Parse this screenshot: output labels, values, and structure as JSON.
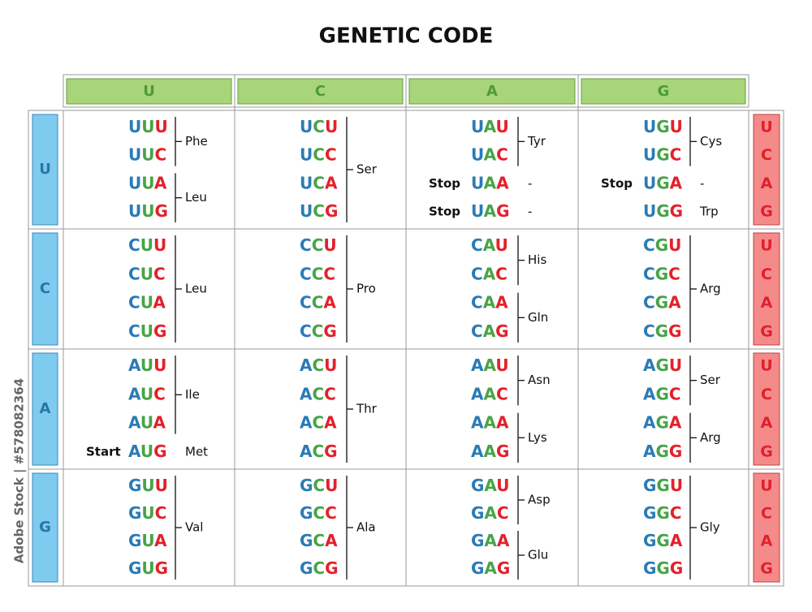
{
  "header": {
    "title": "GENETIC CODE"
  },
  "watermark": "Adobe Stock | #578082364",
  "columns": [
    "U",
    "C",
    "A",
    "G"
  ],
  "rows": [
    {
      "label": "U",
      "third_base": [
        "U",
        "C",
        "A",
        "G"
      ],
      "cells": [
        {
          "groups": [
            {
              "amino_acid": "Phe",
              "codons": [
                {
                  "codon": "UUU"
                },
                {
                  "codon": "UUC"
                }
              ]
            },
            {
              "amino_acid": "Leu",
              "codons": [
                {
                  "codon": "UUA"
                },
                {
                  "codon": "UUG"
                }
              ]
            }
          ]
        },
        {
          "groups": [
            {
              "amino_acid": "Ser",
              "codons": [
                {
                  "codon": "UCU"
                },
                {
                  "codon": "UCC"
                },
                {
                  "codon": "UCA"
                },
                {
                  "codon": "UCG"
                }
              ]
            }
          ]
        },
        {
          "groups": [
            {
              "amino_acid": "Tyr",
              "codons": [
                {
                  "codon": "UAU"
                },
                {
                  "codon": "UAC"
                }
              ]
            },
            {
              "amino_acid": "-",
              "codons": [
                {
                  "codon": "UAA",
                  "note": "Stop"
                }
              ]
            },
            {
              "amino_acid": "-",
              "codons": [
                {
                  "codon": "UAG",
                  "note": "Stop"
                }
              ]
            }
          ]
        },
        {
          "groups": [
            {
              "amino_acid": "Cys",
              "codons": [
                {
                  "codon": "UGU"
                },
                {
                  "codon": "UGC"
                }
              ]
            },
            {
              "amino_acid": "-",
              "codons": [
                {
                  "codon": "UGA",
                  "note": "Stop"
                }
              ]
            },
            {
              "amino_acid": "Trp",
              "codons": [
                {
                  "codon": "UGG"
                }
              ]
            }
          ]
        }
      ]
    },
    {
      "label": "C",
      "third_base": [
        "U",
        "C",
        "A",
        "G"
      ],
      "cells": [
        {
          "groups": [
            {
              "amino_acid": "Leu",
              "codons": [
                {
                  "codon": "CUU"
                },
                {
                  "codon": "CUC"
                },
                {
                  "codon": "CUA"
                },
                {
                  "codon": "CUG"
                }
              ]
            }
          ]
        },
        {
          "groups": [
            {
              "amino_acid": "Pro",
              "codons": [
                {
                  "codon": "CCU"
                },
                {
                  "codon": "CCC"
                },
                {
                  "codon": "CCA"
                },
                {
                  "codon": "CCG"
                }
              ]
            }
          ]
        },
        {
          "groups": [
            {
              "amino_acid": "His",
              "codons": [
                {
                  "codon": "CAU"
                },
                {
                  "codon": "CAC"
                }
              ]
            },
            {
              "amino_acid": "Gln",
              "codons": [
                {
                  "codon": "CAA"
                },
                {
                  "codon": "CAG"
                }
              ]
            }
          ]
        },
        {
          "groups": [
            {
              "amino_acid": "Arg",
              "codons": [
                {
                  "codon": "CGU"
                },
                {
                  "codon": "CGC"
                },
                {
                  "codon": "CGA"
                },
                {
                  "codon": "CGG"
                }
              ]
            }
          ]
        }
      ]
    },
    {
      "label": "A",
      "third_base": [
        "U",
        "C",
        "A",
        "G"
      ],
      "cells": [
        {
          "groups": [
            {
              "amino_acid": "Ile",
              "codons": [
                {
                  "codon": "AUU"
                },
                {
                  "codon": "AUC"
                },
                {
                  "codon": "AUA"
                }
              ]
            },
            {
              "amino_acid": "Met",
              "codons": [
                {
                  "codon": "AUG",
                  "note": "Start"
                }
              ]
            }
          ]
        },
        {
          "groups": [
            {
              "amino_acid": "Thr",
              "codons": [
                {
                  "codon": "ACU"
                },
                {
                  "codon": "ACC"
                },
                {
                  "codon": "ACA"
                },
                {
                  "codon": "ACG"
                }
              ]
            }
          ]
        },
        {
          "groups": [
            {
              "amino_acid": "Asn",
              "codons": [
                {
                  "codon": "AAU"
                },
                {
                  "codon": "AAC"
                }
              ]
            },
            {
              "amino_acid": "Lys",
              "codons": [
                {
                  "codon": "AAA"
                },
                {
                  "codon": "AAG"
                }
              ]
            }
          ]
        },
        {
          "groups": [
            {
              "amino_acid": "Ser",
              "codons": [
                {
                  "codon": "AGU"
                },
                {
                  "codon": "AGC"
                }
              ]
            },
            {
              "amino_acid": "Arg",
              "codons": [
                {
                  "codon": "AGA"
                },
                {
                  "codon": "AGG"
                }
              ]
            }
          ]
        }
      ]
    },
    {
      "label": "G",
      "third_base": [
        "U",
        "C",
        "A",
        "G"
      ],
      "cells": [
        {
          "groups": [
            {
              "amino_acid": "Val",
              "codons": [
                {
                  "codon": "GUU"
                },
                {
                  "codon": "GUC"
                },
                {
                  "codon": "GUA"
                },
                {
                  "codon": "GUG"
                }
              ]
            }
          ]
        },
        {
          "groups": [
            {
              "amino_acid": "Ala",
              "codons": [
                {
                  "codon": "GCU"
                },
                {
                  "codon": "GCC"
                },
                {
                  "codon": "GCA"
                },
                {
                  "codon": "GCG"
                }
              ]
            }
          ]
        },
        {
          "groups": [
            {
              "amino_acid": "Asp",
              "codons": [
                {
                  "codon": "GAU"
                },
                {
                  "codon": "GAC"
                }
              ]
            },
            {
              "amino_acid": "Glu",
              "codons": [
                {
                  "codon": "GAA"
                },
                {
                  "codon": "GAG"
                }
              ]
            }
          ]
        },
        {
          "groups": [
            {
              "amino_acid": "Gly",
              "codons": [
                {
                  "codon": "GGU"
                },
                {
                  "codon": "GGC"
                },
                {
                  "codon": "GGA"
                },
                {
                  "codon": "GGG"
                }
              ]
            }
          ]
        }
      ]
    }
  ]
}
